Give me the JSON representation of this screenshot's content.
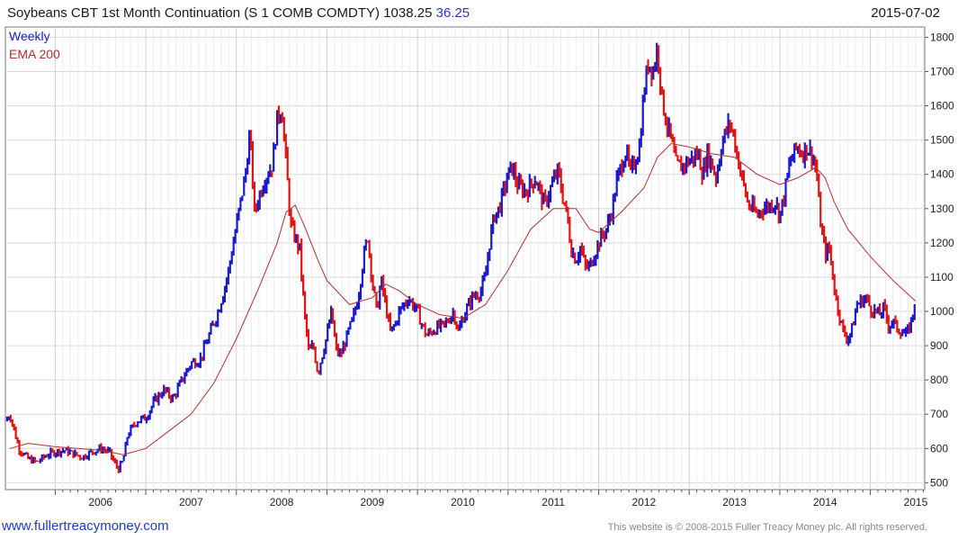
{
  "header": {
    "title": "Soybeans CBT 1st Month Continuation (S 1 COMB COMDTY) 1038.25",
    "change": "36.25",
    "date": "2015-07-02"
  },
  "footer": {
    "website": "www.fullertreacymoney.com",
    "copyright": "This website is © 2008-2015 Fuller Treacy Money plc. All rights reserved."
  },
  "colors": {
    "up": "#1a1acc",
    "down": "#e01414",
    "ema": "#b03030",
    "grid": "#d9d9d9",
    "title_change": "#2a38c8"
  },
  "chart_data": {
    "type": "line",
    "subtype": "candlestick-weekly",
    "legend": [
      "Weekly",
      "EMA 200"
    ],
    "legend_position": "top-left",
    "y_axis_position": "right",
    "ylim": [
      480,
      1830
    ],
    "yticks": [
      500,
      600,
      700,
      800,
      900,
      1000,
      1100,
      1200,
      1300,
      1400,
      1500,
      1600,
      1700,
      1800
    ],
    "xlim": [
      2005.45,
      2015.6
    ],
    "xticks": [
      "2006",
      "2007",
      "2008",
      "2009",
      "2010",
      "2011",
      "2012",
      "2013",
      "2014",
      "2015"
    ],
    "grid": true,
    "price_path": [
      [
        2005.45,
        680
      ],
      [
        2005.5,
        700
      ],
      [
        2005.6,
        600
      ],
      [
        2005.7,
        570
      ],
      [
        2005.8,
        560
      ],
      [
        2005.9,
        580
      ],
      [
        2006.0,
        590
      ],
      [
        2006.1,
        595
      ],
      [
        2006.2,
        585
      ],
      [
        2006.3,
        575
      ],
      [
        2006.4,
        590
      ],
      [
        2006.5,
        600
      ],
      [
        2006.6,
        590
      ],
      [
        2006.65,
        560
      ],
      [
        2006.7,
        540
      ],
      [
        2006.75,
        565
      ],
      [
        2006.8,
        640
      ],
      [
        2006.9,
        680
      ],
      [
        2007.0,
        690
      ],
      [
        2007.1,
        740
      ],
      [
        2007.2,
        770
      ],
      [
        2007.3,
        745
      ],
      [
        2007.4,
        800
      ],
      [
        2007.5,
        850
      ],
      [
        2007.6,
        860
      ],
      [
        2007.7,
        930
      ],
      [
        2007.8,
        1000
      ],
      [
        2007.9,
        1100
      ],
      [
        2008.0,
        1250
      ],
      [
        2008.1,
        1400
      ],
      [
        2008.15,
        1520
      ],
      [
        2008.2,
        1290
      ],
      [
        2008.3,
        1380
      ],
      [
        2008.4,
        1430
      ],
      [
        2008.45,
        1560
      ],
      [
        2008.5,
        1600
      ],
      [
        2008.55,
        1430
      ],
      [
        2008.6,
        1250
      ],
      [
        2008.7,
        1180
      ],
      [
        2008.75,
        1000
      ],
      [
        2008.8,
        880
      ],
      [
        2008.85,
        900
      ],
      [
        2008.9,
        820
      ],
      [
        2009.0,
        930
      ],
      [
        2009.05,
        1000
      ],
      [
        2009.1,
        890
      ],
      [
        2009.15,
        870
      ],
      [
        2009.2,
        910
      ],
      [
        2009.3,
        990
      ],
      [
        2009.35,
        1050
      ],
      [
        2009.4,
        1150
      ],
      [
        2009.45,
        1220
      ],
      [
        2009.5,
        1090
      ],
      [
        2009.55,
        1000
      ],
      [
        2009.6,
        1090
      ],
      [
        2009.7,
        940
      ],
      [
        2009.75,
        960
      ],
      [
        2009.8,
        1000
      ],
      [
        2009.9,
        1040
      ],
      [
        2010.0,
        1000
      ],
      [
        2010.05,
        960
      ],
      [
        2010.1,
        930
      ],
      [
        2010.2,
        950
      ],
      [
        2010.3,
        960
      ],
      [
        2010.4,
        1000
      ],
      [
        2010.45,
        940
      ],
      [
        2010.5,
        980
      ],
      [
        2010.6,
        1040
      ],
      [
        2010.7,
        1060
      ],
      [
        2010.75,
        1100
      ],
      [
        2010.8,
        1210
      ],
      [
        2010.85,
        1280
      ],
      [
        2010.9,
        1300
      ],
      [
        2011.0,
        1400
      ],
      [
        2011.05,
        1420
      ],
      [
        2011.1,
        1370
      ],
      [
        2011.2,
        1350
      ],
      [
        2011.3,
        1390
      ],
      [
        2011.4,
        1310
      ],
      [
        2011.5,
        1380
      ],
      [
        2011.55,
        1410
      ],
      [
        2011.6,
        1340
      ],
      [
        2011.65,
        1280
      ],
      [
        2011.7,
        1180
      ],
      [
        2011.75,
        1150
      ],
      [
        2011.8,
        1190
      ],
      [
        2011.85,
        1130
      ],
      [
        2011.9,
        1130
      ],
      [
        2012.0,
        1200
      ],
      [
        2012.1,
        1250
      ],
      [
        2012.15,
        1300
      ],
      [
        2012.2,
        1380
      ],
      [
        2012.3,
        1470
      ],
      [
        2012.35,
        1400
      ],
      [
        2012.4,
        1440
      ],
      [
        2012.45,
        1480
      ],
      [
        2012.5,
        1640
      ],
      [
        2012.55,
        1730
      ],
      [
        2012.6,
        1700
      ],
      [
        2012.65,
        1770
      ],
      [
        2012.7,
        1620
      ],
      [
        2012.75,
        1550
      ],
      [
        2012.8,
        1500
      ],
      [
        2012.85,
        1430
      ],
      [
        2012.9,
        1420
      ],
      [
        2013.0,
        1440
      ],
      [
        2013.1,
        1460
      ],
      [
        2013.15,
        1400
      ],
      [
        2013.2,
        1460
      ],
      [
        2013.25,
        1430
      ],
      [
        2013.3,
        1390
      ],
      [
        2013.35,
        1480
      ],
      [
        2013.4,
        1520
      ],
      [
        2013.45,
        1550
      ],
      [
        2013.5,
        1500
      ],
      [
        2013.55,
        1430
      ],
      [
        2013.6,
        1370
      ],
      [
        2013.65,
        1310
      ],
      [
        2013.7,
        1300
      ],
      [
        2013.75,
        1280
      ],
      [
        2013.8,
        1300
      ],
      [
        2013.9,
        1310
      ],
      [
        2013.95,
        1320
      ],
      [
        2014.0,
        1280
      ],
      [
        2014.05,
        1340
      ],
      [
        2014.1,
        1420
      ],
      [
        2014.15,
        1460
      ],
      [
        2014.2,
        1480
      ],
      [
        2014.25,
        1460
      ],
      [
        2014.3,
        1480
      ],
      [
        2014.35,
        1460
      ],
      [
        2014.4,
        1420
      ],
      [
        2014.45,
        1260
      ],
      [
        2014.5,
        1170
      ],
      [
        2014.55,
        1180
      ],
      [
        2014.6,
        1070
      ],
      [
        2014.65,
        1000
      ],
      [
        2014.7,
        940
      ],
      [
        2014.75,
        920
      ],
      [
        2014.8,
        950
      ],
      [
        2014.85,
        1020
      ],
      [
        2014.9,
        1030
      ],
      [
        2014.95,
        1040
      ],
      [
        2015.0,
        1010
      ],
      [
        2015.05,
        1000
      ],
      [
        2015.1,
        990
      ],
      [
        2015.15,
        1010
      ],
      [
        2015.2,
        960
      ],
      [
        2015.25,
        970
      ],
      [
        2015.3,
        950
      ],
      [
        2015.35,
        940
      ],
      [
        2015.4,
        930
      ],
      [
        2015.45,
        970
      ],
      [
        2015.5,
        1038
      ]
    ],
    "ema_200": [
      [
        2005.5,
        600
      ],
      [
        2005.7,
        615
      ],
      [
        2006.0,
        605
      ],
      [
        2006.5,
        595
      ],
      [
        2006.75,
        582
      ],
      [
        2007.0,
        600
      ],
      [
        2007.25,
        650
      ],
      [
        2007.5,
        700
      ],
      [
        2007.75,
        790
      ],
      [
        2008.0,
        920
      ],
      [
        2008.25,
        1070
      ],
      [
        2008.45,
        1200
      ],
      [
        2008.55,
        1290
      ],
      [
        2008.65,
        1310
      ],
      [
        2008.75,
        1250
      ],
      [
        2008.9,
        1150
      ],
      [
        2009.0,
        1090
      ],
      [
        2009.25,
        1020
      ],
      [
        2009.5,
        1040
      ],
      [
        2009.65,
        1080
      ],
      [
        2009.8,
        1060
      ],
      [
        2010.0,
        1020
      ],
      [
        2010.25,
        990
      ],
      [
        2010.5,
        980
      ],
      [
        2010.75,
        1020
      ],
      [
        2011.0,
        1120
      ],
      [
        2011.25,
        1240
      ],
      [
        2011.5,
        1300
      ],
      [
        2011.75,
        1300
      ],
      [
        2011.9,
        1240
      ],
      [
        2012.0,
        1230
      ],
      [
        2012.25,
        1290
      ],
      [
        2012.5,
        1360
      ],
      [
        2012.65,
        1450
      ],
      [
        2012.8,
        1490
      ],
      [
        2013.0,
        1480
      ],
      [
        2013.25,
        1460
      ],
      [
        2013.5,
        1450
      ],
      [
        2013.75,
        1400
      ],
      [
        2014.0,
        1370
      ],
      [
        2014.2,
        1390
      ],
      [
        2014.4,
        1420
      ],
      [
        2014.5,
        1390
      ],
      [
        2014.6,
        1320
      ],
      [
        2014.75,
        1240
      ],
      [
        2015.0,
        1160
      ],
      [
        2015.25,
        1090
      ],
      [
        2015.5,
        1030
      ]
    ]
  }
}
